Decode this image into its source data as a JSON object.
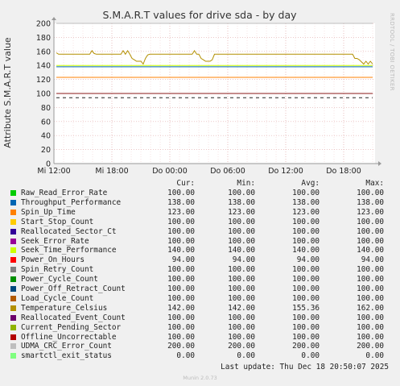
{
  "chart_data": {
    "type": "line",
    "title": "S.M.A.R.T values for drive sda - by day",
    "ylabel": "Attribute S.M.A.R.T value",
    "side_label": "RRDTOOL / TOBI OETIKER",
    "ylim": [
      0,
      200
    ],
    "yticks": [
      0,
      20,
      40,
      60,
      80,
      100,
      120,
      140,
      160,
      180,
      200
    ],
    "xticks": [
      "Mi 12:00",
      "Mi 18:00",
      "Do 00:00",
      "Do 06:00",
      "Do 12:00",
      "Do 18:00"
    ],
    "grid": true,
    "columns": [
      "Cur:",
      "Min:",
      "Avg:",
      "Max:"
    ],
    "series": [
      {
        "name": "Raw_Read_Error_Rate",
        "color": "#00cc00",
        "cur": "100.00",
        "min": "100.00",
        "avg": "100.00",
        "max": "100.00",
        "values": [
          100,
          100
        ]
      },
      {
        "name": "Throughput_Performance",
        "color": "#0066b3",
        "cur": "138.00",
        "min": "138.00",
        "avg": "138.00",
        "max": "138.00",
        "values": [
          138,
          138
        ]
      },
      {
        "name": "Spin_Up_Time",
        "color": "#ff8000",
        "cur": "123.00",
        "min": "123.00",
        "avg": "123.00",
        "max": "123.00",
        "values": [
          123,
          123
        ]
      },
      {
        "name": "Start_Stop_Count",
        "color": "#ffcc00",
        "cur": "100.00",
        "min": "100.00",
        "avg": "100.00",
        "max": "100.00",
        "values": [
          100,
          100
        ]
      },
      {
        "name": "Reallocated_Sector_Ct",
        "color": "#330099",
        "cur": "100.00",
        "min": "100.00",
        "avg": "100.00",
        "max": "100.00",
        "values": [
          100,
          100
        ]
      },
      {
        "name": "Seek_Error_Rate",
        "color": "#990099",
        "cur": "100.00",
        "min": "100.00",
        "avg": "100.00",
        "max": "100.00",
        "values": [
          100,
          100
        ]
      },
      {
        "name": "Seek_Time_Performance",
        "color": "#ccff00",
        "cur": "140.00",
        "min": "140.00",
        "avg": "140.00",
        "max": "140.00",
        "values": [
          140,
          140
        ]
      },
      {
        "name": "Power_On_Hours",
        "color": "#ff0000",
        "cur": "94.00",
        "min": "94.00",
        "avg": "94.00",
        "max": "94.00",
        "values": [
          94,
          94
        ]
      },
      {
        "name": "Spin_Retry_Count",
        "color": "#808080",
        "cur": "100.00",
        "min": "100.00",
        "avg": "100.00",
        "max": "100.00",
        "values": [
          100,
          100
        ]
      },
      {
        "name": "Power_Cycle_Count",
        "color": "#008f00",
        "cur": "100.00",
        "min": "100.00",
        "avg": "100.00",
        "max": "100.00",
        "values": [
          100,
          100
        ]
      },
      {
        "name": "Power_Off_Retract_Count",
        "color": "#00487d",
        "cur": "100.00",
        "min": "100.00",
        "avg": "100.00",
        "max": "100.00",
        "values": [
          100,
          100
        ]
      },
      {
        "name": "Load_Cycle_Count",
        "color": "#b35a00",
        "cur": "100.00",
        "min": "100.00",
        "avg": "100.00",
        "max": "100.00",
        "values": [
          100,
          100
        ]
      },
      {
        "name": "Temperature_Celsius",
        "color": "#b38f00",
        "cur": "142.00",
        "min": "142.00",
        "avg": "155.36",
        "max": "162.00",
        "values": [
          158,
          156,
          156,
          156,
          156,
          156,
          156,
          156,
          156,
          156,
          156,
          156,
          156,
          156,
          156,
          156,
          161,
          157,
          156,
          156,
          156,
          156,
          156,
          156,
          156,
          156,
          156,
          156,
          156,
          156,
          161,
          156,
          161,
          156,
          150,
          148,
          146,
          146,
          146,
          142,
          150,
          155,
          156,
          156,
          156,
          156,
          156,
          156,
          156,
          156,
          156,
          156,
          156,
          156,
          156,
          156,
          156,
          156,
          156,
          156,
          156,
          156,
          161,
          156,
          156,
          150,
          148,
          146,
          146,
          146,
          148,
          156,
          156,
          156,
          156,
          156,
          156,
          156,
          156,
          156,
          156,
          156,
          156,
          156,
          156,
          156,
          156,
          156,
          156,
          156,
          156,
          156,
          156,
          156,
          156,
          156,
          156,
          156,
          156,
          156,
          156,
          156,
          156,
          156,
          156,
          156,
          156,
          156,
          156,
          156,
          156,
          156,
          156,
          156,
          156,
          156,
          156,
          156,
          156,
          156,
          156,
          156,
          156,
          156,
          156,
          156,
          156,
          156,
          156,
          156,
          156,
          156,
          156,
          156,
          150,
          150,
          148,
          145,
          142,
          146,
          142,
          146,
          142
        ]
      },
      {
        "name": "Reallocated_Event_Count",
        "color": "#6b006b",
        "cur": "100.00",
        "min": "100.00",
        "avg": "100.00",
        "max": "100.00",
        "values": [
          100,
          100
        ]
      },
      {
        "name": "Current_Pending_Sector",
        "color": "#8fb300",
        "cur": "100.00",
        "min": "100.00",
        "avg": "100.00",
        "max": "100.00",
        "values": [
          100,
          100
        ]
      },
      {
        "name": "Offline_Uncorrectable",
        "color": "#b30000",
        "cur": "100.00",
        "min": "100.00",
        "avg": "100.00",
        "max": "100.00",
        "values": [
          100,
          100
        ]
      },
      {
        "name": "UDMA_CRC_Error_Count",
        "color": "#bebebe",
        "cur": "200.00",
        "min": "200.00",
        "avg": "200.00",
        "max": "200.00",
        "values": [
          200,
          200
        ]
      },
      {
        "name": "smartctl_exit_status",
        "color": "#80ff80",
        "cur": "0.00",
        "min": "0.00",
        "avg": "0.00",
        "max": "0.00",
        "values": [
          0,
          0
        ]
      }
    ]
  },
  "last_update": "Last update: Thu Dec 18 20:50:07 2025",
  "footer": "Munin 2.0.73"
}
